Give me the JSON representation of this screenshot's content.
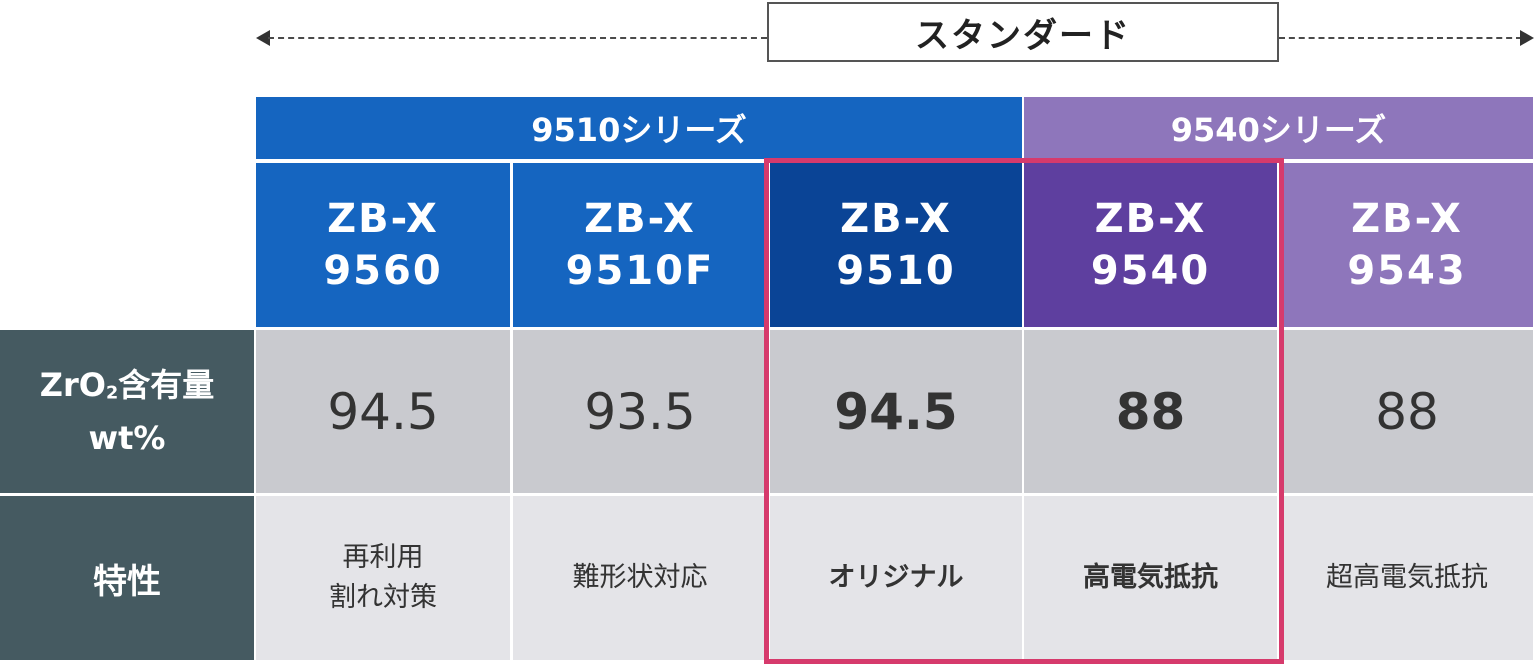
{
  "standard": {
    "label": "スタンダード"
  },
  "series": {
    "s9510": "9510シリーズ",
    "s9540": "9540シリーズ"
  },
  "models": [
    {
      "line1": "ZB-X",
      "line2": "9560"
    },
    {
      "line1": "ZB-X",
      "line2": "9510F"
    },
    {
      "line1": "ZB-X",
      "line2": "9510"
    },
    {
      "line1": "ZB-X",
      "line2": "9540"
    },
    {
      "line1": "ZB-X",
      "line2": "9543"
    }
  ],
  "row_labels": {
    "zro2_prefix": "ZrO",
    "zro2_sub": "2",
    "zro2_suffix": "含有量",
    "zro2_unit": "wt%",
    "property": "特性"
  },
  "zro2_values": [
    "94.5",
    "93.5",
    "94.5",
    "88",
    "88"
  ],
  "properties": [
    {
      "line1": "再利用",
      "line2": "割れ対策"
    },
    {
      "line1": "難形状対応",
      "line2": ""
    },
    {
      "line1": "オリジナル",
      "line2": ""
    },
    {
      "line1": "高電気抵抗",
      "line2": ""
    },
    {
      "line1": "超高電気抵抗",
      "line2": ""
    }
  ],
  "colors": {
    "series_9510": "#1565c0",
    "series_9540": "#8e76bb",
    "highlight": "#d63a6c",
    "row_label_bg": "#455a61"
  }
}
